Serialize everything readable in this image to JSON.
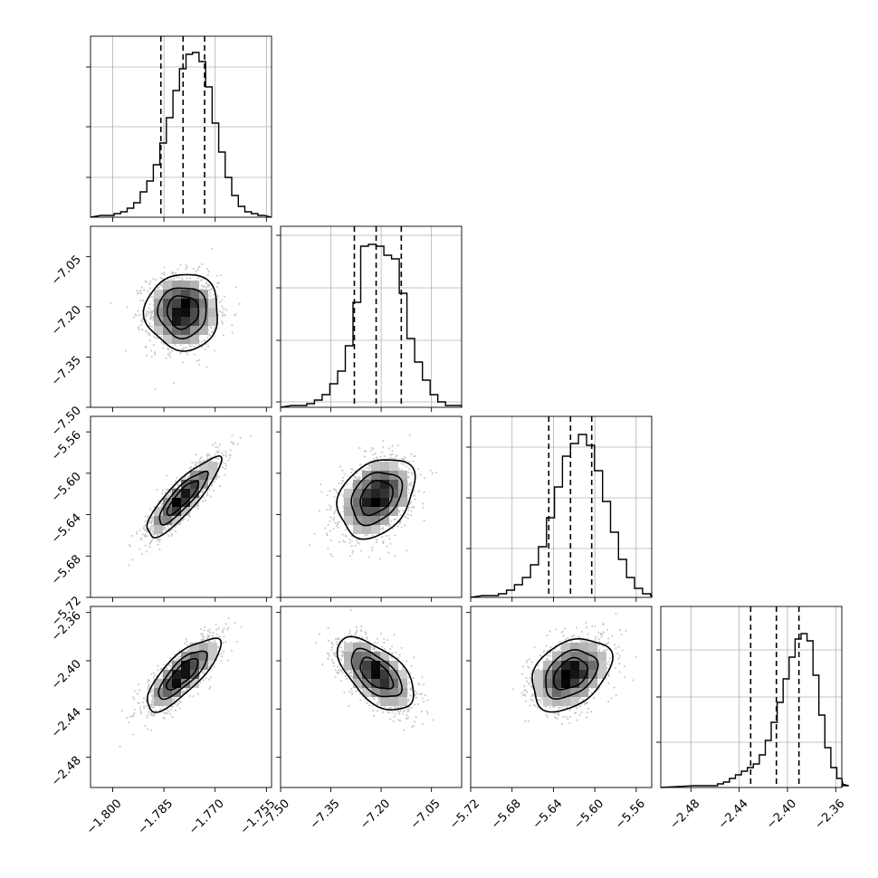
{
  "chart_data": {
    "type": "corner",
    "grid": true,
    "parameters": [
      {
        "range": [
          -1.8065,
          -1.7535
        ],
        "ticks": [
          -1.8,
          -1.785,
          -1.77,
          -1.755
        ],
        "tick_labels": [
          "−1.800",
          "−1.785",
          "−1.770",
          "−1.755"
        ],
        "mean": -1.7795,
        "sd": 0.0052,
        "quantiles": [
          -1.7859,
          -1.7794,
          -1.7731
        ],
        "hist_peak_fraction": 0.91,
        "hist_yticks_fraction": [
          0.22,
          0.5,
          0.83
        ],
        "hist_counts": [
          1,
          1,
          2,
          3,
          5,
          8,
          14,
          20,
          29,
          41,
          55,
          70,
          82,
          90,
          91,
          86,
          72,
          52,
          36,
          22,
          12,
          6,
          3,
          2,
          1
        ]
      },
      {
        "range": [
          -7.5,
          -6.96
        ],
        "ticks": [
          -7.5,
          -7.35,
          -7.2,
          -7.05
        ],
        "tick_labels": [
          "−7.50",
          "−7.35",
          "−7.20",
          "−7.05"
        ],
        "mean": -7.215,
        "sd": 0.055,
        "quantiles": [
          -7.28,
          -7.215,
          -7.14
        ],
        "hist_peak_fraction": 0.9,
        "hist_yticks_fraction": [
          0.03,
          0.37,
          0.66,
          0.95
        ],
        "hist_counts": [
          1,
          1,
          2,
          4,
          7,
          13,
          20,
          34,
          58,
          89,
          90,
          89,
          84,
          82,
          63,
          38,
          25,
          15,
          7,
          3,
          1,
          1
        ]
      },
      {
        "range": [
          -5.72,
          -5.545
        ],
        "ticks": [
          -5.72,
          -5.68,
          -5.64,
          -5.6,
          -5.56
        ],
        "tick_labels": [
          "−5.72",
          "−5.68",
          "−5.64",
          "−5.60",
          "−5.56"
        ],
        "mean": -5.6235,
        "sd": 0.0185,
        "quantiles": [
          -5.6445,
          -5.6235,
          -5.603
        ],
        "hist_peak_fraction": 0.9,
        "hist_yticks_fraction": [
          0.27,
          0.55,
          0.83
        ],
        "hist_counts": [
          1,
          1,
          2,
          4,
          7,
          11,
          18,
          28,
          44,
          61,
          78,
          85,
          90,
          84,
          70,
          53,
          36,
          21,
          11,
          5,
          2,
          1
        ]
      },
      {
        "range": [
          -2.505,
          -2.355
        ],
        "ticks": [
          -2.48,
          -2.44,
          -2.4,
          -2.36
        ],
        "tick_labels": [
          "−2.48",
          "−2.44",
          "−2.40",
          "−2.36"
        ],
        "mean": -2.411,
        "sd": 0.0145,
        "quantiles": [
          -2.4305,
          -2.4092,
          -2.3905
        ],
        "hist_peak_fraction": 0.85,
        "hist_yticks_fraction": [
          0.25,
          0.5,
          0.76
        ],
        "hist_counts": [
          1,
          1,
          1,
          1,
          2,
          3,
          5,
          7,
          9,
          11,
          13,
          18,
          26,
          36,
          47,
          60,
          72,
          82,
          85,
          81,
          62,
          40,
          22,
          11,
          5,
          2,
          1
        ]
      }
    ],
    "correlations": [
      {
        "row": 1,
        "col": 0,
        "rho": 0.0
      },
      {
        "row": 2,
        "col": 0,
        "rho": 0.86
      },
      {
        "row": 2,
        "col": 1,
        "rho": 0.3
      },
      {
        "row": 3,
        "col": 0,
        "rho": 0.78
      },
      {
        "row": 3,
        "col": 1,
        "rho": -0.58
      },
      {
        "row": 3,
        "col": 2,
        "rho": 0.35
      }
    ],
    "contour_levels_sigma": [
      0.5,
      1.0,
      1.5
    ],
    "points_per_panel": 1400
  }
}
